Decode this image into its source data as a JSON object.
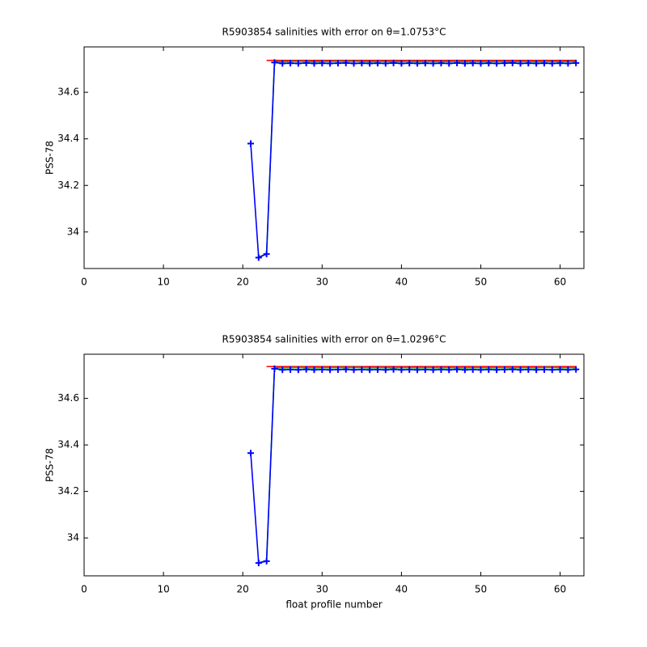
{
  "chart_data": [
    {
      "type": "line",
      "title": "R5903854 salinities with error on θ=1.0753°C",
      "y_label": "PSS-78",
      "x": [
        21,
        22,
        23,
        24,
        25,
        26,
        27,
        28,
        29,
        30,
        31,
        32,
        33,
        34,
        35,
        36,
        37,
        38,
        39,
        40,
        41,
        42,
        43,
        44,
        45,
        46,
        47,
        48,
        49,
        50,
        51,
        52,
        53,
        54,
        55,
        56,
        57,
        58,
        59,
        60,
        61,
        62
      ],
      "series": [
        {
          "color": "#ff0000",
          "values": [
            null,
            null,
            34.737,
            34.737,
            34.737,
            34.737,
            34.737,
            34.737,
            34.737,
            34.737,
            34.737,
            34.737,
            34.737,
            34.737,
            34.737,
            34.737,
            34.737,
            34.737,
            34.737,
            34.737,
            34.737,
            34.737,
            34.737,
            34.737,
            34.737,
            34.737,
            34.737,
            34.737,
            34.737,
            34.737,
            34.737,
            34.737,
            34.737,
            34.737,
            34.737,
            34.737,
            34.737,
            34.737,
            34.737,
            34.737,
            34.737,
            34.737
          ]
        },
        {
          "color": "#00c000",
          "values": [
            null,
            33.893,
            33.905,
            34.732,
            34.731,
            34.732,
            34.733,
            34.732,
            34.731,
            34.732,
            34.732,
            34.733,
            34.732,
            34.733,
            34.732,
            34.731,
            34.732,
            34.732,
            34.731,
            34.732,
            34.732,
            34.731,
            34.732,
            34.732,
            34.731,
            34.732,
            34.732,
            34.731,
            34.732,
            34.732,
            34.731,
            34.732,
            34.732,
            34.731,
            34.732,
            34.732,
            34.731,
            34.732,
            34.732,
            34.731,
            34.732,
            34.732
          ]
        },
        {
          "color": "#0000ff",
          "marker": "+",
          "values": [
            34.38,
            33.89,
            33.905,
            34.728,
            34.724,
            34.725,
            34.724,
            34.726,
            34.724,
            34.725,
            34.724,
            34.725,
            34.726,
            34.724,
            34.725,
            34.724,
            34.725,
            34.724,
            34.726,
            34.724,
            34.725,
            34.724,
            34.725,
            34.724,
            34.725,
            34.724,
            34.726,
            34.724,
            34.725,
            34.724,
            34.725,
            34.724,
            34.725,
            34.726,
            34.724,
            34.725,
            34.724,
            34.725,
            34.724,
            34.725,
            34.724,
            34.726
          ]
        }
      ],
      "xlim": [
        0,
        63
      ],
      "xticks": [
        0,
        10,
        20,
        30,
        40,
        50,
        60
      ],
      "ylim": [
        33.843,
        34.795
      ],
      "yticks": [
        34,
        34.2,
        34.4,
        34.6
      ]
    },
    {
      "type": "line",
      "title": "R5903854 salinities with error on θ=1.0296°C",
      "x_label": "float profile number",
      "y_label": "PSS-78",
      "x": [
        21,
        22,
        23,
        24,
        25,
        26,
        27,
        28,
        29,
        30,
        31,
        32,
        33,
        34,
        35,
        36,
        37,
        38,
        39,
        40,
        41,
        42,
        43,
        44,
        45,
        46,
        47,
        48,
        49,
        50,
        51,
        52,
        53,
        54,
        55,
        56,
        57,
        58,
        59,
        60,
        61,
        62
      ],
      "series": [
        {
          "color": "#ff0000",
          "values": [
            null,
            null,
            34.737,
            34.737,
            34.737,
            34.737,
            34.737,
            34.737,
            34.737,
            34.737,
            34.737,
            34.737,
            34.737,
            34.737,
            34.737,
            34.737,
            34.737,
            34.737,
            34.737,
            34.737,
            34.737,
            34.737,
            34.737,
            34.737,
            34.737,
            34.737,
            34.737,
            34.737,
            34.737,
            34.737,
            34.737,
            34.737,
            34.737,
            34.737,
            34.737,
            34.737,
            34.737,
            34.737,
            34.737,
            34.737,
            34.737,
            34.737
          ]
        },
        {
          "color": "#00c000",
          "values": [
            null,
            33.894,
            33.902,
            34.732,
            34.731,
            34.732,
            34.733,
            34.732,
            34.731,
            34.732,
            34.732,
            34.733,
            34.732,
            34.733,
            34.732,
            34.731,
            34.732,
            34.732,
            34.731,
            34.732,
            34.732,
            34.731,
            34.732,
            34.732,
            34.731,
            34.732,
            34.732,
            34.731,
            34.732,
            34.732,
            34.731,
            34.732,
            34.732,
            34.731,
            34.732,
            34.732,
            34.731,
            34.733,
            34.733,
            34.731,
            34.732,
            34.732
          ]
        },
        {
          "color": "#0000ff",
          "marker": "+",
          "values": [
            34.365,
            33.892,
            33.9,
            34.728,
            34.723,
            34.724,
            34.723,
            34.725,
            34.723,
            34.724,
            34.723,
            34.724,
            34.725,
            34.723,
            34.724,
            34.723,
            34.724,
            34.723,
            34.725,
            34.723,
            34.724,
            34.723,
            34.724,
            34.723,
            34.724,
            34.723,
            34.725,
            34.723,
            34.724,
            34.723,
            34.724,
            34.723,
            34.724,
            34.725,
            34.723,
            34.724,
            34.723,
            34.724,
            34.723,
            34.724,
            34.723,
            34.725
          ]
        }
      ],
      "xlim": [
        0,
        63
      ],
      "xticks": [
        0,
        10,
        20,
        30,
        40,
        50,
        60
      ],
      "ylim": [
        33.837,
        34.79
      ],
      "yticks": [
        34,
        34.2,
        34.4,
        34.6
      ]
    }
  ]
}
